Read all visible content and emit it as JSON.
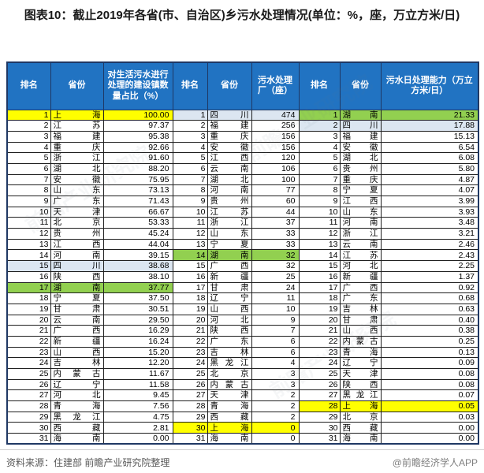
{
  "page": {
    "title": "图表10：截止2019年各省(市、自治区)乡污水处理情况(单位：%，座，万立方米/日)",
    "source_note": "资料来源：住建部 前瞻产业研究院整理",
    "brand": "@前瞻经济学人APP",
    "watermark": "前瞻产业研究院"
  },
  "colors": {
    "header_bg": "#2173C2",
    "header_text": "#FFFFFF",
    "outer_border": "#1F3864",
    "grid_border": "#1F1F1F",
    "highlight_yellow": "#FFFF00",
    "highlight_green": "#92D050",
    "highlight_blue": "#DCE6F1"
  },
  "chart_data": {
    "type": "table",
    "title": "截止2019年各省(市、自治区)乡污水处理情况",
    "units": "%，座，万立方米/日",
    "highlight_meaning": {
      "yellow": "上海",
      "blue": "四川",
      "green": "湖南"
    },
    "column_groups": [
      {
        "headers": [
          "排名",
          "省份",
          "对生活污水进行处理的建设镇数量占比（%）"
        ],
        "rows": [
          {
            "rank": "1",
            "province": "上海",
            "value": "100.00",
            "hl": "yellow"
          },
          {
            "rank": "2",
            "province": "江苏",
            "value": "97.37"
          },
          {
            "rank": "3",
            "province": "福建",
            "value": "95.38"
          },
          {
            "rank": "4",
            "province": "重庆",
            "value": "92.66"
          },
          {
            "rank": "5",
            "province": "浙江",
            "value": "91.60"
          },
          {
            "rank": "6",
            "province": "湖北",
            "value": "88.20"
          },
          {
            "rank": "7",
            "province": "安徽",
            "value": "75.95"
          },
          {
            "rank": "8",
            "province": "山东",
            "value": "73.13"
          },
          {
            "rank": "9",
            "province": "广东",
            "value": "71.43"
          },
          {
            "rank": "10",
            "province": "天津",
            "value": "66.67"
          },
          {
            "rank": "11",
            "province": "北京",
            "value": "53.33"
          },
          {
            "rank": "12",
            "province": "贵州",
            "value": "45.24"
          },
          {
            "rank": "13",
            "province": "江西",
            "value": "44.04"
          },
          {
            "rank": "14",
            "province": "河南",
            "value": "39.15"
          },
          {
            "rank": "15",
            "province": "四川",
            "value": "38.68",
            "hl": "blue"
          },
          {
            "rank": "16",
            "province": "陕西",
            "value": "38.10"
          },
          {
            "rank": "17",
            "province": "湖南",
            "value": "37.77",
            "hl": "green"
          },
          {
            "rank": "18",
            "province": "宁夏",
            "value": "37.50"
          },
          {
            "rank": "19",
            "province": "甘肃",
            "value": "30.51"
          },
          {
            "rank": "20",
            "province": "云南",
            "value": "29.50"
          },
          {
            "rank": "21",
            "province": "广西",
            "value": "16.29"
          },
          {
            "rank": "22",
            "province": "新疆",
            "value": "16.24"
          },
          {
            "rank": "23",
            "province": "山西",
            "value": "15.20"
          },
          {
            "rank": "24",
            "province": "吉林",
            "value": "12.20"
          },
          {
            "rank": "25",
            "province": "内蒙古",
            "value": "11.67"
          },
          {
            "rank": "26",
            "province": "辽宁",
            "value": "11.58"
          },
          {
            "rank": "27",
            "province": "河北",
            "value": "9.45"
          },
          {
            "rank": "28",
            "province": "青海",
            "value": "7.56"
          },
          {
            "rank": "29",
            "province": "黑龙江",
            "value": "4.75"
          },
          {
            "rank": "30",
            "province": "西藏",
            "value": "2.81"
          },
          {
            "rank": "31",
            "province": "海南",
            "value": "0.00"
          }
        ]
      },
      {
        "headers": [
          "排名",
          "省份",
          "污水处理厂（座）"
        ],
        "rows": [
          {
            "rank": "1",
            "province": "四川",
            "value": "474",
            "hl": "blue"
          },
          {
            "rank": "2",
            "province": "福建",
            "value": "256"
          },
          {
            "rank": "3",
            "province": "重庆",
            "value": "156"
          },
          {
            "rank": "4",
            "province": "安徽",
            "value": "156"
          },
          {
            "rank": "5",
            "province": "江西",
            "value": "120"
          },
          {
            "rank": "6",
            "province": "云南",
            "value": "106"
          },
          {
            "rank": "7",
            "province": "湖北",
            "value": "100"
          },
          {
            "rank": "8",
            "province": "河南",
            "value": "77"
          },
          {
            "rank": "9",
            "province": "贵州",
            "value": "60"
          },
          {
            "rank": "10",
            "province": "江苏",
            "value": "44"
          },
          {
            "rank": "11",
            "province": "浙江",
            "value": "37"
          },
          {
            "rank": "12",
            "province": "山东",
            "value": "33"
          },
          {
            "rank": "13",
            "province": "宁夏",
            "value": "33"
          },
          {
            "rank": "14",
            "province": "湖南",
            "value": "32",
            "hl": "green"
          },
          {
            "rank": "15",
            "province": "广西",
            "value": "32"
          },
          {
            "rank": "16",
            "province": "新疆",
            "value": "25"
          },
          {
            "rank": "17",
            "province": "甘肃",
            "value": "24"
          },
          {
            "rank": "18",
            "province": "辽宁",
            "value": "11"
          },
          {
            "rank": "19",
            "province": "山西",
            "value": "10"
          },
          {
            "rank": "20",
            "province": "河北",
            "value": "9"
          },
          {
            "rank": "21",
            "province": "陕西",
            "value": "7"
          },
          {
            "rank": "22",
            "province": "广东",
            "value": "6"
          },
          {
            "rank": "23",
            "province": "吉林",
            "value": "6"
          },
          {
            "rank": "24",
            "province": "黑龙江",
            "value": "4"
          },
          {
            "rank": "25",
            "province": "北京",
            "value": "3"
          },
          {
            "rank": "26",
            "province": "内蒙古",
            "value": "3"
          },
          {
            "rank": "27",
            "province": "天津",
            "value": "2"
          },
          {
            "rank": "28",
            "province": "青海",
            "value": "2"
          },
          {
            "rank": "29",
            "province": "西藏",
            "value": "2"
          },
          {
            "rank": "30",
            "province": "上海",
            "value": "0",
            "hl": "yellow"
          },
          {
            "rank": "31",
            "province": "海南",
            "value": "0"
          }
        ]
      },
      {
        "headers": [
          "排名",
          "省份",
          "污水日处理能力（万立方米/日）"
        ],
        "rows": [
          {
            "rank": "1",
            "province": "湖南",
            "value": "21.33",
            "hl": "green"
          },
          {
            "rank": "2",
            "province": "四川",
            "value": "17.88",
            "hl": "blue"
          },
          {
            "rank": "3",
            "province": "福建",
            "value": "15.13"
          },
          {
            "rank": "4",
            "province": "安徽",
            "value": "6.54"
          },
          {
            "rank": "5",
            "province": "湖北",
            "value": "6.08"
          },
          {
            "rank": "6",
            "province": "贵州",
            "value": "5.80"
          },
          {
            "rank": "7",
            "province": "重庆",
            "value": "4.87"
          },
          {
            "rank": "8",
            "province": "宁夏",
            "value": "4.07"
          },
          {
            "rank": "9",
            "province": "江西",
            "value": "3.99"
          },
          {
            "rank": "10",
            "province": "山东",
            "value": "3.93"
          },
          {
            "rank": "11",
            "province": "河南",
            "value": "3.48"
          },
          {
            "rank": "12",
            "province": "浙江",
            "value": "3.21"
          },
          {
            "rank": "13",
            "province": "云南",
            "value": "2.46"
          },
          {
            "rank": "14",
            "province": "江苏",
            "value": "2.43"
          },
          {
            "rank": "15",
            "province": "河北",
            "value": "2.25"
          },
          {
            "rank": "16",
            "province": "新疆",
            "value": "1.37"
          },
          {
            "rank": "17",
            "province": "广西",
            "value": "0.92"
          },
          {
            "rank": "18",
            "province": "广东",
            "value": "0.68"
          },
          {
            "rank": "19",
            "province": "吉林",
            "value": "0.63"
          },
          {
            "rank": "20",
            "province": "甘肃",
            "value": "0.40"
          },
          {
            "rank": "21",
            "province": "山西",
            "value": "0.38"
          },
          {
            "rank": "22",
            "province": "内蒙古",
            "value": "0.25"
          },
          {
            "rank": "23",
            "province": "青海",
            "value": "0.13"
          },
          {
            "rank": "24",
            "province": "辽宁",
            "value": "0.09"
          },
          {
            "rank": "25",
            "province": "天津",
            "value": "0.08"
          },
          {
            "rank": "26",
            "province": "陕西",
            "value": "0.08"
          },
          {
            "rank": "27",
            "province": "黑龙江",
            "value": "0.07"
          },
          {
            "rank": "28",
            "province": "上海",
            "value": "0.05",
            "hl": "yellow"
          },
          {
            "rank": "29",
            "province": "北京",
            "value": "0.03"
          },
          {
            "rank": "30",
            "province": "西藏",
            "value": "0.00"
          },
          {
            "rank": "31",
            "province": "海南",
            "value": "0.00"
          }
        ]
      }
    ]
  }
}
